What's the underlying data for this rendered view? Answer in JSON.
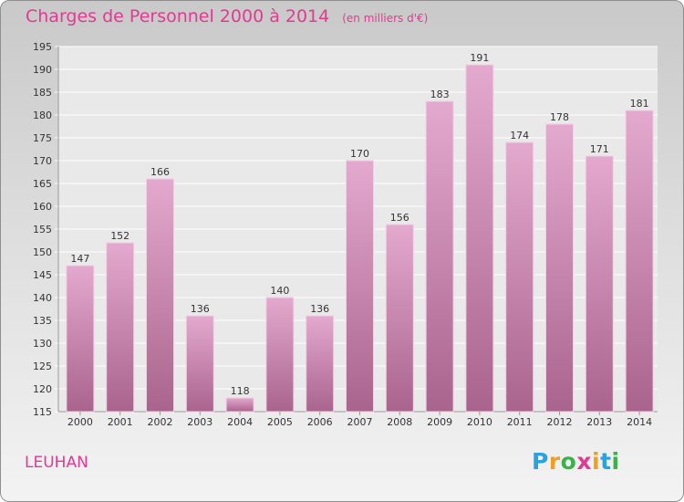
{
  "title": "Charges de Personnel 2000 à 2014",
  "subtitle": "(en milliers d'€)",
  "town": "LEUHAN",
  "logo": {
    "letters": [
      "P",
      "r",
      "o",
      "x",
      "i",
      "t",
      "i"
    ],
    "colors": [
      "#2aa2de",
      "#f0a01e",
      "#3bb149",
      "#e23a91",
      "#f0a01e",
      "#2aa2de",
      "#3bb149"
    ]
  },
  "colors": {
    "bar_light": "#e4a9ce",
    "bar_dark": "#a9648d",
    "title": "#e23a91"
  },
  "chart_data": {
    "type": "bar",
    "title": "Charges de Personnel 2000 à 2014",
    "subtitle": "(en milliers d'€)",
    "categories": [
      "2000",
      "2001",
      "2002",
      "2003",
      "2004",
      "2005",
      "2006",
      "2007",
      "2008",
      "2009",
      "2010",
      "2011",
      "2012",
      "2013",
      "2014"
    ],
    "values": [
      147,
      152,
      166,
      136,
      118,
      140,
      136,
      170,
      156,
      183,
      191,
      174,
      178,
      171,
      181
    ],
    "ylim": [
      115,
      195
    ],
    "yticks": [
      115,
      120,
      125,
      130,
      135,
      140,
      145,
      150,
      155,
      160,
      165,
      170,
      175,
      180,
      185,
      190,
      195
    ],
    "grid": true,
    "data_labels": true
  }
}
